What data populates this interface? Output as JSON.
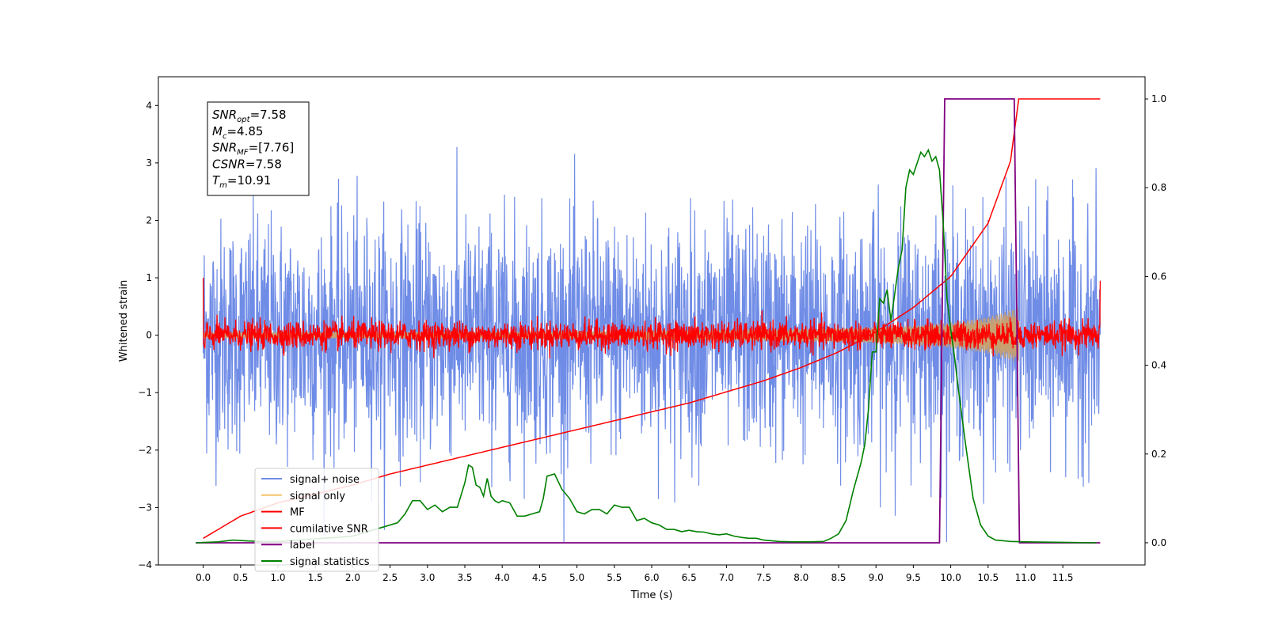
{
  "chart_data": {
    "type": "line",
    "title": "",
    "xlabel": "Time (s)",
    "ylabel": "Whitened strain",
    "xlim": [
      -0.6,
      12.6
    ],
    "ylim": [
      -4,
      4.5
    ],
    "ylim_right": [
      -0.05,
      1.05
    ],
    "x_ticks": [
      "0.0",
      "0.5",
      "1.0",
      "1.5",
      "2.0",
      "2.5",
      "3.0",
      "3.5",
      "4.0",
      "4.5",
      "5.0",
      "5.5",
      "6.0",
      "6.5",
      "7.0",
      "7.5",
      "8.0",
      "8.5",
      "9.0",
      "9.5",
      "10.0",
      "10.5",
      "11.0",
      "11.5"
    ],
    "y_ticks_left": [
      "4",
      "3",
      "2",
      "1",
      "0",
      "−1",
      "−2",
      "−3",
      "−4"
    ],
    "y_ticks_right": [
      "1.0",
      "0.8",
      "0.6",
      "0.4",
      "0.2",
      "0.0"
    ],
    "grid": false,
    "legend": {
      "placement": "lower-left",
      "entries": [
        {
          "label": "signal+ noise",
          "color": "#6f8ce6"
        },
        {
          "label": "signal only",
          "color": "#f5c46b"
        },
        {
          "label": "MF",
          "color": "#ff0000"
        },
        {
          "label": "cumilative SNR",
          "color": "#ff0000"
        },
        {
          "label": "label",
          "color": "#800080"
        },
        {
          "label": "signal statistics",
          "color": "#008000"
        }
      ]
    },
    "annotation": [
      {
        "sym": "SNR",
        "sub": "opt",
        "value": "=7.58"
      },
      {
        "sym": "M",
        "sub": "c",
        "value": "=4.85"
      },
      {
        "sym": "SNR",
        "sub": "MF",
        "value": "=[7.76]"
      },
      {
        "sym": "CSNR",
        "sub": "",
        "value": "=7.58"
      },
      {
        "sym": "T",
        "sub": "m",
        "value": "=10.91"
      }
    ],
    "series": [
      {
        "name": "signal+ noise",
        "axis": "left",
        "color": "#6f8ce6",
        "x_range": [
          0,
          12.0
        ],
        "noise_sigma": 1.0
      },
      {
        "name": "signal only",
        "axis": "left",
        "color": "#f5c46b",
        "x_range": [
          0,
          10.91
        ],
        "envelope": {
          "x": [
            0,
            4,
            6,
            8,
            9,
            9.5,
            10,
            10.5,
            10.91
          ],
          "y": [
            0.05,
            0.06,
            0.08,
            0.11,
            0.14,
            0.17,
            0.22,
            0.32,
            0.48
          ]
        }
      },
      {
        "name": "MF",
        "axis": "left",
        "color": "#ff0000",
        "x_range": [
          0,
          12.0
        ],
        "noise_sigma": 0.12,
        "edge_values": [
          1.0,
          0.95
        ]
      },
      {
        "name": "cumilative SNR",
        "axis": "right",
        "color": "#ff0000",
        "x": [
          0,
          0.5,
          1,
          1.5,
          2,
          2.5,
          3,
          3.5,
          4,
          4.5,
          5,
          5.5,
          6,
          6.5,
          7,
          7.5,
          8,
          8.5,
          9,
          9.5,
          10,
          10.5,
          10.8,
          10.91,
          12.0
        ],
        "y": [
          0.01,
          0.06,
          0.09,
          0.11,
          0.13,
          0.155,
          0.175,
          0.195,
          0.215,
          0.235,
          0.255,
          0.275,
          0.295,
          0.315,
          0.34,
          0.365,
          0.395,
          0.43,
          0.475,
          0.53,
          0.6,
          0.72,
          0.86,
          1.0,
          1.0
        ]
      },
      {
        "name": "label",
        "axis": "right",
        "color": "#800080",
        "x": [
          -0.1,
          9.85,
          9.92,
          10.85,
          10.92,
          12.0
        ],
        "y": [
          0.0,
          0.0,
          1.0,
          1.0,
          0.0,
          0.0
        ]
      },
      {
        "name": "signal statistics",
        "axis": "right",
        "color": "#008000",
        "x": [
          -0.1,
          0.2,
          0.4,
          0.6,
          0.8,
          1.0,
          1.2,
          1.4,
          1.6,
          1.8,
          2.0,
          2.2,
          2.4,
          2.6,
          2.7,
          2.8,
          2.9,
          3.0,
          3.1,
          3.2,
          3.3,
          3.4,
          3.5,
          3.55,
          3.6,
          3.65,
          3.7,
          3.75,
          3.8,
          3.85,
          3.9,
          3.95,
          4.0,
          4.1,
          4.2,
          4.3,
          4.4,
          4.5,
          4.55,
          4.6,
          4.7,
          4.8,
          4.9,
          5.0,
          5.1,
          5.2,
          5.3,
          5.4,
          5.5,
          5.6,
          5.7,
          5.8,
          5.9,
          6.0,
          6.1,
          6.2,
          6.3,
          6.4,
          6.5,
          6.6,
          6.7,
          6.8,
          6.9,
          7.0,
          7.1,
          7.2,
          7.3,
          7.4,
          7.5,
          7.7,
          7.9,
          8.1,
          8.3,
          8.4,
          8.5,
          8.6,
          8.7,
          8.8,
          8.85,
          8.9,
          8.95,
          9.0,
          9.05,
          9.1,
          9.15,
          9.2,
          9.3,
          9.35,
          9.4,
          9.45,
          9.5,
          9.6,
          9.65,
          9.7,
          9.75,
          9.8,
          9.85,
          9.9,
          9.95,
          10.0,
          10.05,
          10.1,
          10.2,
          10.3,
          10.4,
          10.5,
          10.6,
          10.8,
          11.0,
          11.5,
          11.95
        ],
        "y": [
          0.0,
          0.002,
          0.006,
          0.004,
          0.003,
          0.003,
          0.005,
          0.008,
          0.01,
          0.012,
          0.015,
          0.025,
          0.035,
          0.045,
          0.065,
          0.095,
          0.095,
          0.075,
          0.085,
          0.07,
          0.08,
          0.08,
          0.135,
          0.175,
          0.17,
          0.13,
          0.125,
          0.105,
          0.145,
          0.105,
          0.095,
          0.09,
          0.095,
          0.09,
          0.06,
          0.06,
          0.065,
          0.07,
          0.1,
          0.15,
          0.155,
          0.12,
          0.1,
          0.07,
          0.065,
          0.075,
          0.075,
          0.065,
          0.085,
          0.08,
          0.08,
          0.05,
          0.055,
          0.045,
          0.04,
          0.03,
          0.03,
          0.025,
          0.028,
          0.025,
          0.024,
          0.02,
          0.018,
          0.02,
          0.015,
          0.012,
          0.01,
          0.01,
          0.006,
          0.003,
          0.002,
          0.002,
          0.003,
          0.01,
          0.02,
          0.05,
          0.12,
          0.18,
          0.22,
          0.3,
          0.43,
          0.43,
          0.55,
          0.54,
          0.57,
          0.5,
          0.62,
          0.66,
          0.8,
          0.84,
          0.83,
          0.88,
          0.87,
          0.885,
          0.86,
          0.87,
          0.84,
          0.72,
          0.55,
          0.48,
          0.42,
          0.35,
          0.22,
          0.1,
          0.04,
          0.015,
          0.006,
          0.003,
          0.002,
          0.001,
          0.0
        ]
      }
    ]
  }
}
